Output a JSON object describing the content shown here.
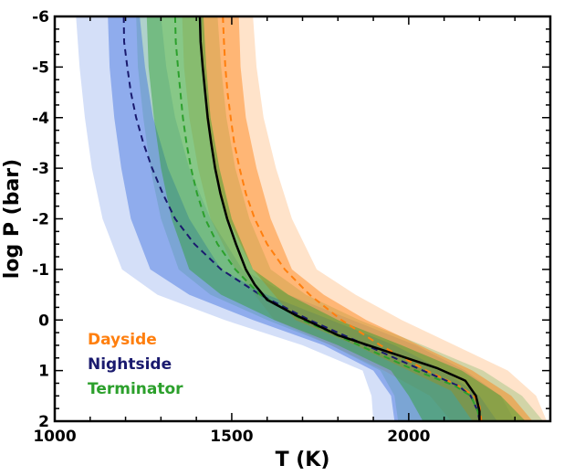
{
  "chart_data": {
    "type": "line",
    "xlabel": "T (K)",
    "ylabel": "log P (bar)",
    "xlim": [
      1000,
      2400
    ],
    "ylim": [
      2,
      -6
    ],
    "y_axis_inverted": true,
    "xticks": [
      1000,
      1500,
      2000
    ],
    "yticks": [
      -6,
      -5,
      -4,
      -3,
      -2,
      -1,
      0,
      1,
      2
    ],
    "legend_position": "bottom-left",
    "colors": {
      "dayside": "#ff7f0e",
      "nightside": "#1a1a6e",
      "terminator": "#2ca02c",
      "nightside_band": "#3b6fe0",
      "reference": "#000000"
    },
    "series": [
      {
        "name": "Dayside",
        "style": "dashed",
        "median": [
          [
            1475,
            -6
          ],
          [
            1478,
            -5.5
          ],
          [
            1482,
            -5
          ],
          [
            1488,
            -4.5
          ],
          [
            1497,
            -4
          ],
          [
            1507,
            -3.5
          ],
          [
            1522,
            -3
          ],
          [
            1540,
            -2.5
          ],
          [
            1565,
            -2
          ],
          [
            1600,
            -1.5
          ],
          [
            1650,
            -1
          ],
          [
            1720,
            -0.5
          ],
          [
            1810,
            0
          ],
          [
            1920,
            0.5
          ],
          [
            2050,
            1
          ],
          [
            2140,
            1.3
          ],
          [
            2185,
            1.5
          ],
          [
            2200,
            1.7
          ],
          [
            2205,
            2
          ]
        ],
        "band_1sigma": {
          "lower": [
            [
              1415,
              -6
            ],
            [
              1418,
              -5
            ],
            [
              1428,
              -4
            ],
            [
              1450,
              -3
            ],
            [
              1490,
              -2
            ],
            [
              1560,
              -1
            ],
            [
              1680,
              0
            ],
            [
              1850,
              0.5
            ],
            [
              2000,
              1
            ],
            [
              2120,
              1.4
            ],
            [
              2180,
              2
            ]
          ],
          "upper": [
            [
              1520,
              -6
            ],
            [
              1525,
              -5
            ],
            [
              1540,
              -4
            ],
            [
              1570,
              -3
            ],
            [
              1610,
              -2
            ],
            [
              1670,
              -1
            ],
            [
              1760,
              -0.5
            ],
            [
              1880,
              0
            ],
            [
              2030,
              0.5
            ],
            [
              2180,
              1
            ],
            [
              2290,
              1.5
            ],
            [
              2350,
              2
            ]
          ]
        },
        "band_2sigma": {
          "lower": [
            [
              1360,
              -6
            ],
            [
              1365,
              -5
            ],
            [
              1380,
              -4
            ],
            [
              1405,
              -3
            ],
            [
              1440,
              -2
            ],
            [
              1510,
              -1
            ],
            [
              1620,
              0
            ],
            [
              1780,
              0.5
            ],
            [
              1930,
              1
            ],
            [
              2060,
              1.5
            ],
            [
              2120,
              2
            ]
          ],
          "upper": [
            [
              1560,
              -6
            ],
            [
              1570,
              -5
            ],
            [
              1590,
              -4
            ],
            [
              1625,
              -3
            ],
            [
              1670,
              -2
            ],
            [
              1740,
              -1
            ],
            [
              1850,
              -0.5
            ],
            [
              1980,
              0
            ],
            [
              2130,
              0.5
            ],
            [
              2280,
              1
            ],
            [
              2360,
              1.5
            ],
            [
              2390,
              2
            ]
          ]
        }
      },
      {
        "name": "Nightside",
        "style": "dashed",
        "median": [
          [
            1195,
            -6
          ],
          [
            1196,
            -5.5
          ],
          [
            1205,
            -5
          ],
          [
            1215,
            -4.5
          ],
          [
            1230,
            -4
          ],
          [
            1250,
            -3.5
          ],
          [
            1275,
            -3
          ],
          [
            1305,
            -2.5
          ],
          [
            1340,
            -2
          ],
          [
            1395,
            -1.5
          ],
          [
            1470,
            -1
          ],
          [
            1580,
            -0.5
          ],
          [
            1720,
            0
          ],
          [
            1880,
            0.5
          ],
          [
            2040,
            1
          ],
          [
            2140,
            1.3
          ],
          [
            2175,
            1.5
          ],
          [
            2195,
            1.8
          ],
          [
            2200,
            2
          ]
        ],
        "band_1sigma": {
          "lower": [
            [
              1150,
              -6
            ],
            [
              1155,
              -5
            ],
            [
              1168,
              -4
            ],
            [
              1188,
              -3
            ],
            [
              1215,
              -2
            ],
            [
              1270,
              -1
            ],
            [
              1380,
              -0.5
            ],
            [
              1560,
              0
            ],
            [
              1760,
              0.5
            ],
            [
              1900,
              1
            ],
            [
              1950,
              1.5
            ],
            [
              1960,
              2
            ]
          ],
          "upper": [
            [
              1240,
              -6
            ],
            [
              1255,
              -5
            ],
            [
              1278,
              -4
            ],
            [
              1320,
              -3
            ],
            [
              1380,
              -2
            ],
            [
              1470,
              -1
            ],
            [
              1600,
              -0.5
            ],
            [
              1780,
              0
            ],
            [
              1960,
              0.5
            ],
            [
              2100,
              1
            ],
            [
              2200,
              1.5
            ],
            [
              2250,
              2
            ]
          ]
        },
        "band_2sigma": {
          "lower": [
            [
              1060,
              -6
            ],
            [
              1070,
              -5
            ],
            [
              1085,
              -4
            ],
            [
              1105,
              -3
            ],
            [
              1135,
              -2
            ],
            [
              1190,
              -1
            ],
            [
              1290,
              -0.5
            ],
            [
              1480,
              0
            ],
            [
              1700,
              0.5
            ],
            [
              1870,
              1
            ],
            [
              1895,
              1.5
            ],
            [
              1900,
              2
            ]
          ],
          "upper": [
            [
              1300,
              -6
            ],
            [
              1315,
              -5
            ],
            [
              1340,
              -4
            ],
            [
              1380,
              -3
            ],
            [
              1440,
              -2
            ],
            [
              1530,
              -1
            ],
            [
              1660,
              -0.5
            ],
            [
              1840,
              0
            ],
            [
              2020,
              0.5
            ],
            [
              2160,
              1
            ],
            [
              2260,
              1.5
            ],
            [
              2300,
              2
            ]
          ]
        }
      },
      {
        "name": "Terminator",
        "style": "dashed",
        "median": [
          [
            1340,
            -6
          ],
          [
            1342,
            -5.5
          ],
          [
            1348,
            -5
          ],
          [
            1355,
            -4.5
          ],
          [
            1362,
            -4
          ],
          [
            1372,
            -3.5
          ],
          [
            1385,
            -3
          ],
          [
            1402,
            -2.5
          ],
          [
            1425,
            -2
          ],
          [
            1460,
            -1.5
          ],
          [
            1510,
            -1
          ],
          [
            1580,
            -0.5
          ],
          [
            1700,
            0
          ],
          [
            1860,
            0.5
          ],
          [
            2020,
            1
          ],
          [
            2130,
            1.3
          ],
          [
            2175,
            1.5
          ],
          [
            2195,
            1.8
          ],
          [
            2200,
            2
          ]
        ],
        "band_1sigma": {
          "lower": [
            [
              1260,
              -6
            ],
            [
              1265,
              -5
            ],
            [
              1280,
              -4
            ],
            [
              1300,
              -3
            ],
            [
              1330,
              -2
            ],
            [
              1380,
              -1
            ],
            [
              1470,
              -0.5
            ],
            [
              1620,
              0
            ],
            [
              1800,
              0.5
            ],
            [
              1950,
              1
            ],
            [
              2000,
              1.5
            ],
            [
              2040,
              2
            ]
          ],
          "upper": [
            [
              1420,
              -6
            ],
            [
              1428,
              -5
            ],
            [
              1440,
              -4
            ],
            [
              1465,
              -3
            ],
            [
              1500,
              -2
            ],
            [
              1560,
              -1
            ],
            [
              1660,
              -0.5
            ],
            [
              1800,
              0
            ],
            [
              1980,
              0.5
            ],
            [
              2150,
              1
            ],
            [
              2260,
              1.5
            ],
            [
              2330,
              2
            ]
          ]
        },
        "band_2sigma": {
          "lower": [
            [
              1230,
              -6
            ],
            [
              1235,
              -5
            ],
            [
              1250,
              -4
            ],
            [
              1270,
              -3
            ],
            [
              1300,
              -2
            ],
            [
              1350,
              -1
            ],
            [
              1440,
              -0.5
            ],
            [
              1600,
              0
            ],
            [
              1780,
              0.5
            ],
            [
              1920,
              1
            ],
            [
              1960,
              1.5
            ],
            [
              1970,
              2
            ]
          ],
          "upper": [
            [
              1460,
              -6
            ],
            [
              1470,
              -5
            ],
            [
              1485,
              -4
            ],
            [
              1510,
              -3
            ],
            [
              1550,
              -2
            ],
            [
              1610,
              -1
            ],
            [
              1710,
              -0.5
            ],
            [
              1860,
              0
            ],
            [
              2040,
              0.5
            ],
            [
              2210,
              1
            ],
            [
              2320,
              1.5
            ],
            [
              2380,
              2
            ]
          ]
        }
      },
      {
        "name": "",
        "style": "solid",
        "median": [
          [
            1410,
            -6
          ],
          [
            1412,
            -5.5
          ],
          [
            1418,
            -5
          ],
          [
            1425,
            -4.5
          ],
          [
            1432,
            -4
          ],
          [
            1442,
            -3.5
          ],
          [
            1453,
            -3
          ],
          [
            1468,
            -2.5
          ],
          [
            1487,
            -2
          ],
          [
            1512,
            -1.5
          ],
          [
            1540,
            -1
          ],
          [
            1565,
            -0.7
          ],
          [
            1600,
            -0.4
          ],
          [
            1680,
            -0.1
          ],
          [
            1800,
            0.3
          ],
          [
            1950,
            0.65
          ],
          [
            2080,
            0.95
          ],
          [
            2160,
            1.2
          ],
          [
            2190,
            1.5
          ],
          [
            2200,
            1.8
          ],
          [
            2200,
            2
          ]
        ]
      }
    ]
  }
}
